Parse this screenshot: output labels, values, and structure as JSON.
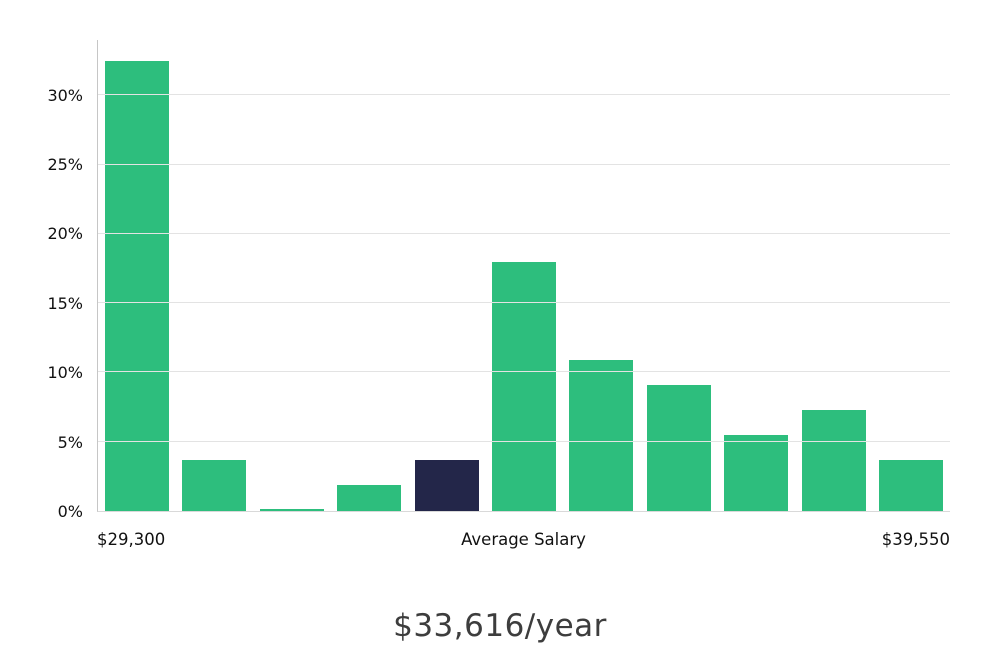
{
  "chart_data": {
    "type": "bar",
    "title": "$33,616/year",
    "values": [
      32.5,
      3.7,
      0.15,
      1.9,
      3.7,
      18.0,
      10.9,
      9.1,
      5.5,
      7.3,
      3.7
    ],
    "highlight_index": 4,
    "y_tick_labels": [
      "0%",
      "5%",
      "10%",
      "15%",
      "20%",
      "25%",
      "30%"
    ],
    "y_tick_values": [
      0,
      5,
      10,
      15,
      20,
      25,
      30
    ],
    "ylim": [
      0,
      34
    ],
    "xlabel": "",
    "ylabel": "",
    "grid": true,
    "legend_position": "none",
    "x_axis_labels": {
      "left": "$29,300",
      "center": "Average Salary",
      "right": "$39,550"
    },
    "colors": {
      "bar": "#2dbe7d",
      "highlight_bar": "#232649",
      "gridline": "#e3e3e3",
      "axis": "#c6c6c6",
      "caption_text": "#3d3d3d"
    }
  }
}
